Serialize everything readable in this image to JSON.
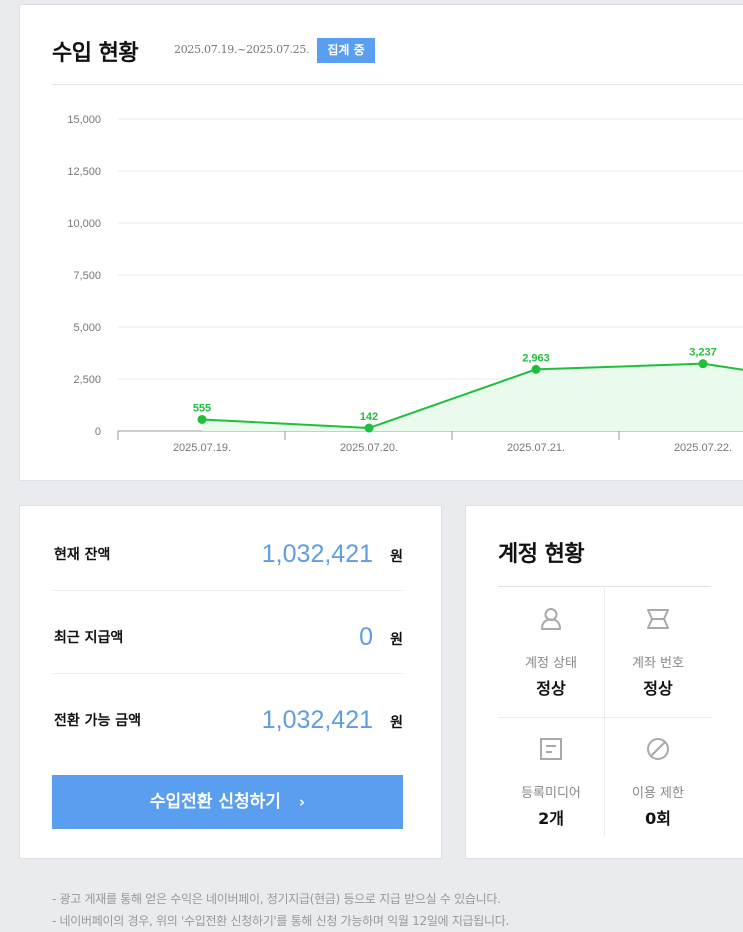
{
  "revenue": {
    "title": "수입 현황",
    "period": "2025.07.19.~2025.07.25.",
    "badge": "집계 중"
  },
  "chart_data": {
    "type": "area",
    "categories": [
      "2025.07.19.",
      "2025.07.20.",
      "2025.07.21.",
      "2025.07.22."
    ],
    "values": [
      555,
      142,
      2963,
      3237
    ],
    "data_labels": [
      "555",
      "142",
      "2,963",
      "3,237"
    ],
    "ylim": [
      0,
      15000
    ],
    "yticks": [
      "0",
      "2,500",
      "5,000",
      "7,500",
      "10,000",
      "12,500",
      "15,000"
    ],
    "grid": true,
    "line_color": "#1fbf3c"
  },
  "balance": {
    "rows": [
      {
        "label": "현재 잔액",
        "amount": "1,032,421",
        "unit": "원"
      },
      {
        "label": "최근 지급액",
        "amount": "0",
        "unit": "원"
      },
      {
        "label": "전환 가능 금액",
        "amount": "1,032,421",
        "unit": "원"
      }
    ],
    "convert_button": "수입전환 신청하기",
    "convert_arrow": "›"
  },
  "account": {
    "title": "계정 현황",
    "items": [
      {
        "icon": "person-icon",
        "label": "계정 상태",
        "value": "정상"
      },
      {
        "icon": "bank-icon",
        "label": "계좌 번호",
        "value": "정상"
      },
      {
        "icon": "document-icon",
        "label": "등록미디어",
        "value": "2개"
      },
      {
        "icon": "restriction-icon",
        "label": "이용 제한",
        "value": "0회"
      }
    ]
  },
  "notes": [
    "- 광고 게재를 통해 얻은 수익은 네이버페이, 정기지급(현금) 등으로 지급 받으실 수 있습니다.",
    "- 네이버페이의 경우, 위의 '수입전환 신청하기'를 통해 신청 가능하며 익월 12일에 지급됩니다."
  ]
}
